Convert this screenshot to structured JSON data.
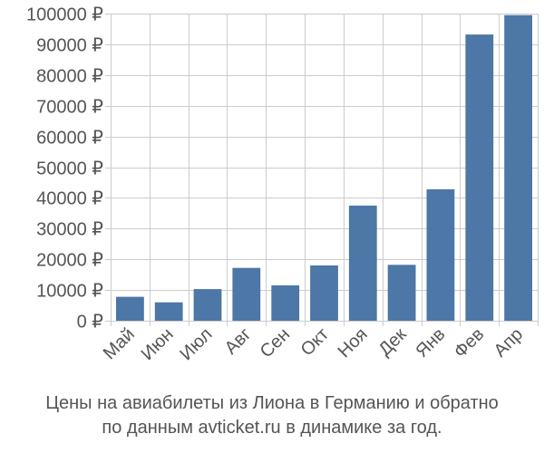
{
  "chart_data": {
    "type": "bar",
    "categories": [
      "Май",
      "Июн",
      "Июл",
      "Авг",
      "Сен",
      "Окт",
      "Ноя",
      "Дек",
      "Янв",
      "Фев",
      "Апр"
    ],
    "series": [
      {
        "values": [
          7800,
          6000,
          10300,
          17200,
          11500,
          18000,
          37500,
          18200,
          42800,
          93200,
          99500
        ]
      }
    ],
    "ylim": [
      0,
      100000
    ],
    "yticks": [
      0,
      10000,
      20000,
      30000,
      40000,
      50000,
      60000,
      70000,
      80000,
      90000,
      100000
    ],
    "ytick_labels": [
      "0 ₽",
      "10000 ₽",
      "20000 ₽",
      "30000 ₽",
      "40000 ₽",
      "50000 ₽",
      "60000 ₽",
      "70000 ₽",
      "80000 ₽",
      "90000 ₽",
      "100000 ₽"
    ],
    "grid": true,
    "bar_color": "#4c77a6",
    "grid_color": "#cccccc",
    "text_color": "#555555"
  },
  "caption": {
    "line1": "Цены на авиабилеты из Лиона в Германию и обратно",
    "line2": "по данным avticket.ru в динамике за год."
  }
}
